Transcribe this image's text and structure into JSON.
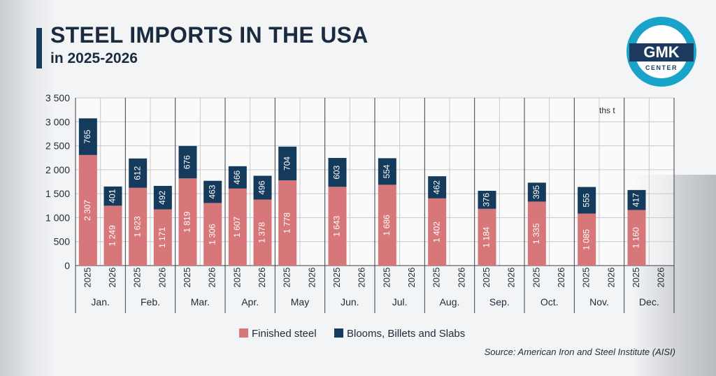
{
  "title": "STEEL IMPORTS IN THE USA",
  "subtitle": "in 2025-2026",
  "logo": {
    "line1": "GMK",
    "line2": "CENTER"
  },
  "unit_label": "ths t",
  "source": "Source: American Iron and Steel Institute (AISI)",
  "colors": {
    "finished": "#d8777a",
    "semi": "#143a5c",
    "accent": "#1aa3c9",
    "grid": "#c7c9cd"
  },
  "chart_data": {
    "type": "bar",
    "stacked": true,
    "title": "STEEL IMPORTS IN THE USA",
    "subtitle": "in 2025-2026",
    "ylim": [
      0,
      3500
    ],
    "yticks": [
      0,
      500,
      1000,
      1500,
      2000,
      2500,
      3000,
      3500
    ],
    "ytick_labels": [
      "0",
      "500",
      "1 000",
      "1 500",
      "2 000",
      "2 500",
      "3 000",
      "3 500"
    ],
    "months": [
      "Jan.",
      "Feb.",
      "Mar.",
      "Apr.",
      "May",
      "Jun.",
      "Jul.",
      "Aug.",
      "Sep.",
      "Oct.",
      "Nov.",
      "Dec."
    ],
    "years": [
      "2025",
      "2026"
    ],
    "series": [
      {
        "name": "Finished steel",
        "values": [
          [
            2307,
            1249
          ],
          [
            1623,
            1171
          ],
          [
            1819,
            1306
          ],
          [
            1607,
            1378
          ],
          [
            1778,
            null
          ],
          [
            1643,
            null
          ],
          [
            1686,
            null
          ],
          [
            1402,
            null
          ],
          [
            1184,
            null
          ],
          [
            1335,
            null
          ],
          [
            1085,
            null
          ],
          [
            1160,
            null
          ]
        ],
        "labels": [
          [
            "2 307",
            "1 249"
          ],
          [
            "1 623",
            "1 171"
          ],
          [
            "1 819",
            "1 306"
          ],
          [
            "1 607",
            "1 378"
          ],
          [
            "1 778",
            ""
          ],
          [
            "1 643",
            ""
          ],
          [
            "1 686",
            ""
          ],
          [
            "1 402",
            ""
          ],
          [
            "1 184",
            ""
          ],
          [
            "1 335",
            ""
          ],
          [
            "1 085",
            ""
          ],
          [
            "1 160",
            ""
          ]
        ]
      },
      {
        "name": "Blooms, Billets and Slabs",
        "values": [
          [
            765,
            401
          ],
          [
            612,
            492
          ],
          [
            676,
            463
          ],
          [
            466,
            496
          ],
          [
            704,
            null
          ],
          [
            603,
            null
          ],
          [
            554,
            null
          ],
          [
            462,
            null
          ],
          [
            376,
            null
          ],
          [
            395,
            null
          ],
          [
            555,
            null
          ],
          [
            417,
            null
          ]
        ],
        "labels": [
          [
            "765",
            "401"
          ],
          [
            "612",
            "492"
          ],
          [
            "676",
            "463"
          ],
          [
            "466",
            "496"
          ],
          [
            "704",
            ""
          ],
          [
            "603",
            ""
          ],
          [
            "554",
            ""
          ],
          [
            "462",
            ""
          ],
          [
            "376",
            ""
          ],
          [
            "395",
            ""
          ],
          [
            "555",
            ""
          ],
          [
            "417",
            ""
          ]
        ]
      }
    ],
    "legend": {
      "position": "bottom",
      "entries": [
        "Finished steel",
        "Blooms, Billets and Slabs"
      ]
    },
    "grid": true,
    "ylabel": "ths t"
  }
}
